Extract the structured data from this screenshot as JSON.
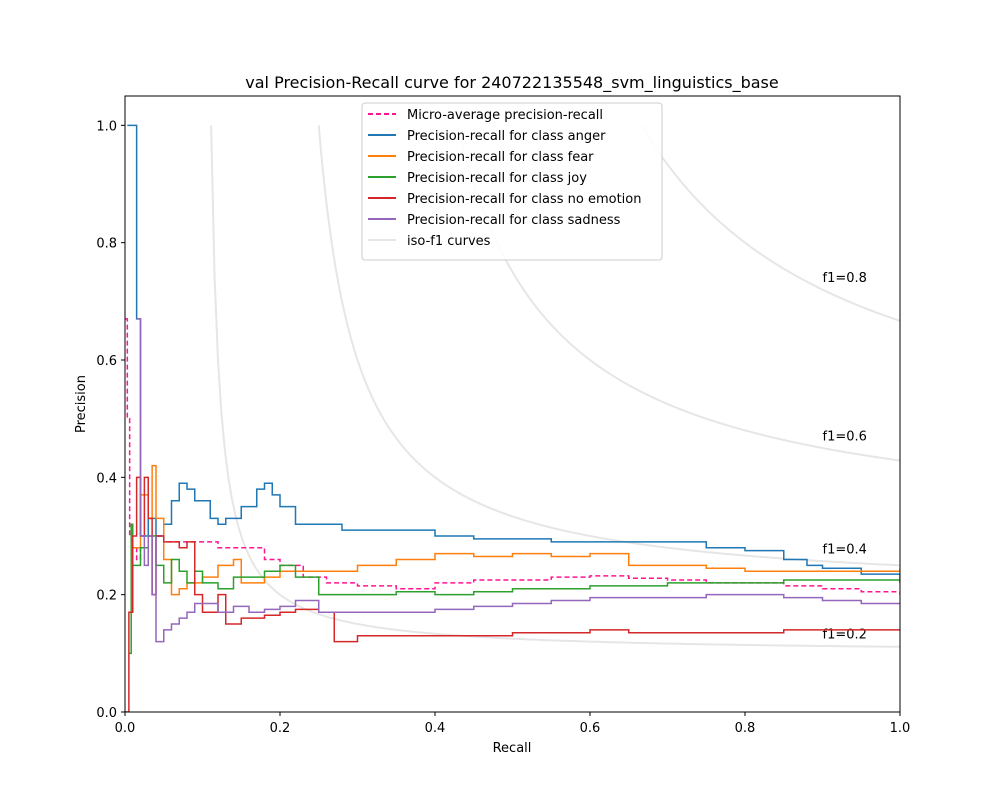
{
  "chart_data": {
    "type": "line",
    "title": "val Precision-Recall curve for 240722135548_svm_linguistics_base",
    "xlabel": "Recall",
    "ylabel": "Precision",
    "xlim": [
      0.0,
      1.0
    ],
    "ylim": [
      0.0,
      1.05
    ],
    "xticks": [
      "0.0",
      "0.2",
      "0.4",
      "0.6",
      "0.8",
      "1.0"
    ],
    "yticks": [
      "0.0",
      "0.2",
      "0.4",
      "0.6",
      "0.8",
      "1.0"
    ],
    "legend_position": "top-center",
    "iso_f1": {
      "values": [
        0.2,
        0.4,
        0.6,
        0.8
      ],
      "labels": [
        "f1=0.2",
        "f1=0.4",
        "f1=0.6",
        "f1=0.8"
      ],
      "legend_label": "iso-f1 curves",
      "color": "#e6e6e6"
    },
    "series": [
      {
        "name": "Micro-average precision-recall",
        "color": "#ff1493",
        "dash": true,
        "points": [
          [
            0,
            0.67
          ],
          [
            0.003,
            0.5
          ],
          [
            0.006,
            0.3
          ],
          [
            0.01,
            0.28
          ],
          [
            0.015,
            0.26
          ],
          [
            0.02,
            0.28
          ],
          [
            0.03,
            0.3
          ],
          [
            0.04,
            0.3
          ],
          [
            0.05,
            0.29
          ],
          [
            0.07,
            0.29
          ],
          [
            0.1,
            0.29
          ],
          [
            0.12,
            0.28
          ],
          [
            0.15,
            0.28
          ],
          [
            0.18,
            0.26
          ],
          [
            0.2,
            0.25
          ],
          [
            0.23,
            0.23
          ],
          [
            0.26,
            0.22
          ],
          [
            0.3,
            0.215
          ],
          [
            0.35,
            0.21
          ],
          [
            0.4,
            0.22
          ],
          [
            0.45,
            0.225
          ],
          [
            0.5,
            0.225
          ],
          [
            0.55,
            0.23
          ],
          [
            0.6,
            0.232
          ],
          [
            0.65,
            0.228
          ],
          [
            0.7,
            0.225
          ],
          [
            0.75,
            0.22
          ],
          [
            0.8,
            0.22
          ],
          [
            0.85,
            0.215
          ],
          [
            0.9,
            0.21
          ],
          [
            0.95,
            0.205
          ],
          [
            1.0,
            0.2
          ]
        ]
      },
      {
        "name": "Precision-recall for class anger",
        "color": "#1f77b4",
        "dash": false,
        "points": [
          [
            0.003,
            1.0
          ],
          [
            0.013,
            1.0
          ],
          [
            0.015,
            0.67
          ],
          [
            0.02,
            0.3
          ],
          [
            0.03,
            0.33
          ],
          [
            0.04,
            0.3
          ],
          [
            0.05,
            0.32
          ],
          [
            0.06,
            0.36
          ],
          [
            0.07,
            0.39
          ],
          [
            0.08,
            0.38
          ],
          [
            0.09,
            0.36
          ],
          [
            0.1,
            0.36
          ],
          [
            0.11,
            0.33
          ],
          [
            0.12,
            0.32
          ],
          [
            0.13,
            0.33
          ],
          [
            0.15,
            0.35
          ],
          [
            0.17,
            0.38
          ],
          [
            0.18,
            0.39
          ],
          [
            0.19,
            0.37
          ],
          [
            0.2,
            0.35
          ],
          [
            0.22,
            0.32
          ],
          [
            0.25,
            0.32
          ],
          [
            0.28,
            0.31
          ],
          [
            0.3,
            0.31
          ],
          [
            0.35,
            0.31
          ],
          [
            0.4,
            0.3
          ],
          [
            0.45,
            0.295
          ],
          [
            0.5,
            0.295
          ],
          [
            0.55,
            0.29
          ],
          [
            0.6,
            0.29
          ],
          [
            0.65,
            0.29
          ],
          [
            0.7,
            0.29
          ],
          [
            0.75,
            0.28
          ],
          [
            0.8,
            0.275
          ],
          [
            0.85,
            0.26
          ],
          [
            0.88,
            0.25
          ],
          [
            0.9,
            0.245
          ],
          [
            0.95,
            0.235
          ],
          [
            1.0,
            0.22
          ]
        ]
      },
      {
        "name": "Precision-recall for class fear",
        "color": "#ff7f0e",
        "dash": false,
        "points": [
          [
            0.01,
            0.28
          ],
          [
            0.02,
            0.37
          ],
          [
            0.03,
            0.33
          ],
          [
            0.035,
            0.42
          ],
          [
            0.04,
            0.33
          ],
          [
            0.05,
            0.26
          ],
          [
            0.06,
            0.2
          ],
          [
            0.07,
            0.21
          ],
          [
            0.08,
            0.22
          ],
          [
            0.09,
            0.22
          ],
          [
            0.1,
            0.23
          ],
          [
            0.12,
            0.25
          ],
          [
            0.14,
            0.26
          ],
          [
            0.15,
            0.22
          ],
          [
            0.18,
            0.23
          ],
          [
            0.2,
            0.24
          ],
          [
            0.25,
            0.24
          ],
          [
            0.3,
            0.25
          ],
          [
            0.35,
            0.26
          ],
          [
            0.4,
            0.27
          ],
          [
            0.45,
            0.265
          ],
          [
            0.5,
            0.27
          ],
          [
            0.55,
            0.265
          ],
          [
            0.6,
            0.27
          ],
          [
            0.65,
            0.25
          ],
          [
            0.7,
            0.25
          ],
          [
            0.75,
            0.245
          ],
          [
            0.8,
            0.24
          ],
          [
            0.85,
            0.24
          ],
          [
            0.9,
            0.24
          ],
          [
            0.95,
            0.24
          ],
          [
            1.0,
            0.245
          ]
        ]
      },
      {
        "name": "Precision-recall for class joy",
        "color": "#2ca02c",
        "dash": false,
        "points": [
          [
            0.005,
            0.1
          ],
          [
            0.008,
            0.32
          ],
          [
            0.01,
            0.25
          ],
          [
            0.02,
            0.28
          ],
          [
            0.03,
            0.3
          ],
          [
            0.04,
            0.25
          ],
          [
            0.05,
            0.22
          ],
          [
            0.06,
            0.26
          ],
          [
            0.07,
            0.24
          ],
          [
            0.08,
            0.22
          ],
          [
            0.09,
            0.24
          ],
          [
            0.1,
            0.22
          ],
          [
            0.12,
            0.21
          ],
          [
            0.14,
            0.23
          ],
          [
            0.16,
            0.23
          ],
          [
            0.18,
            0.24
          ],
          [
            0.2,
            0.25
          ],
          [
            0.22,
            0.23
          ],
          [
            0.25,
            0.2
          ],
          [
            0.3,
            0.2
          ],
          [
            0.35,
            0.205
          ],
          [
            0.4,
            0.2
          ],
          [
            0.45,
            0.205
          ],
          [
            0.5,
            0.21
          ],
          [
            0.55,
            0.21
          ],
          [
            0.6,
            0.215
          ],
          [
            0.65,
            0.215
          ],
          [
            0.7,
            0.22
          ],
          [
            0.75,
            0.22
          ],
          [
            0.8,
            0.22
          ],
          [
            0.85,
            0.225
          ],
          [
            0.9,
            0.225
          ],
          [
            0.95,
            0.225
          ],
          [
            1.0,
            0.22
          ]
        ]
      },
      {
        "name": "Precision-recall for class no emotion",
        "color": "#d62728",
        "dash": false,
        "points": [
          [
            0.0,
            0.0
          ],
          [
            0.005,
            0.17
          ],
          [
            0.01,
            0.3
          ],
          [
            0.015,
            0.4
          ],
          [
            0.02,
            0.3
          ],
          [
            0.025,
            0.4
          ],
          [
            0.03,
            0.33
          ],
          [
            0.035,
            0.2
          ],
          [
            0.04,
            0.3
          ],
          [
            0.05,
            0.29
          ],
          [
            0.07,
            0.28
          ],
          [
            0.08,
            0.29
          ],
          [
            0.09,
            0.2
          ],
          [
            0.1,
            0.17
          ],
          [
            0.12,
            0.2
          ],
          [
            0.13,
            0.15
          ],
          [
            0.15,
            0.16
          ],
          [
            0.18,
            0.165
          ],
          [
            0.2,
            0.17
          ],
          [
            0.22,
            0.175
          ],
          [
            0.25,
            0.17
          ],
          [
            0.27,
            0.12
          ],
          [
            0.3,
            0.13
          ],
          [
            0.35,
            0.13
          ],
          [
            0.4,
            0.13
          ],
          [
            0.45,
            0.13
          ],
          [
            0.5,
            0.135
          ],
          [
            0.55,
            0.135
          ],
          [
            0.6,
            0.14
          ],
          [
            0.65,
            0.135
          ],
          [
            0.7,
            0.135
          ],
          [
            0.75,
            0.135
          ],
          [
            0.8,
            0.135
          ],
          [
            0.85,
            0.14
          ],
          [
            0.9,
            0.14
          ],
          [
            0.95,
            0.14
          ],
          [
            1.0,
            0.14
          ]
        ]
      },
      {
        "name": "Precision-recall for class sadness",
        "color": "#9467bd",
        "dash": false,
        "points": [
          [
            0.015,
            0.67
          ],
          [
            0.02,
            0.3
          ],
          [
            0.025,
            0.25
          ],
          [
            0.03,
            0.3
          ],
          [
            0.035,
            0.2
          ],
          [
            0.04,
            0.3
          ],
          [
            0.04,
            0.12
          ],
          [
            0.05,
            0.14
          ],
          [
            0.06,
            0.15
          ],
          [
            0.07,
            0.16
          ],
          [
            0.08,
            0.17
          ],
          [
            0.09,
            0.185
          ],
          [
            0.1,
            0.185
          ],
          [
            0.12,
            0.17
          ],
          [
            0.14,
            0.18
          ],
          [
            0.16,
            0.17
          ],
          [
            0.18,
            0.175
          ],
          [
            0.2,
            0.18
          ],
          [
            0.22,
            0.19
          ],
          [
            0.25,
            0.17
          ],
          [
            0.3,
            0.17
          ],
          [
            0.35,
            0.17
          ],
          [
            0.4,
            0.175
          ],
          [
            0.45,
            0.18
          ],
          [
            0.5,
            0.185
          ],
          [
            0.55,
            0.19
          ],
          [
            0.6,
            0.195
          ],
          [
            0.65,
            0.195
          ],
          [
            0.7,
            0.195
          ],
          [
            0.75,
            0.2
          ],
          [
            0.8,
            0.2
          ],
          [
            0.85,
            0.195
          ],
          [
            0.9,
            0.19
          ],
          [
            0.95,
            0.185
          ],
          [
            1.0,
            0.185
          ]
        ]
      }
    ]
  }
}
